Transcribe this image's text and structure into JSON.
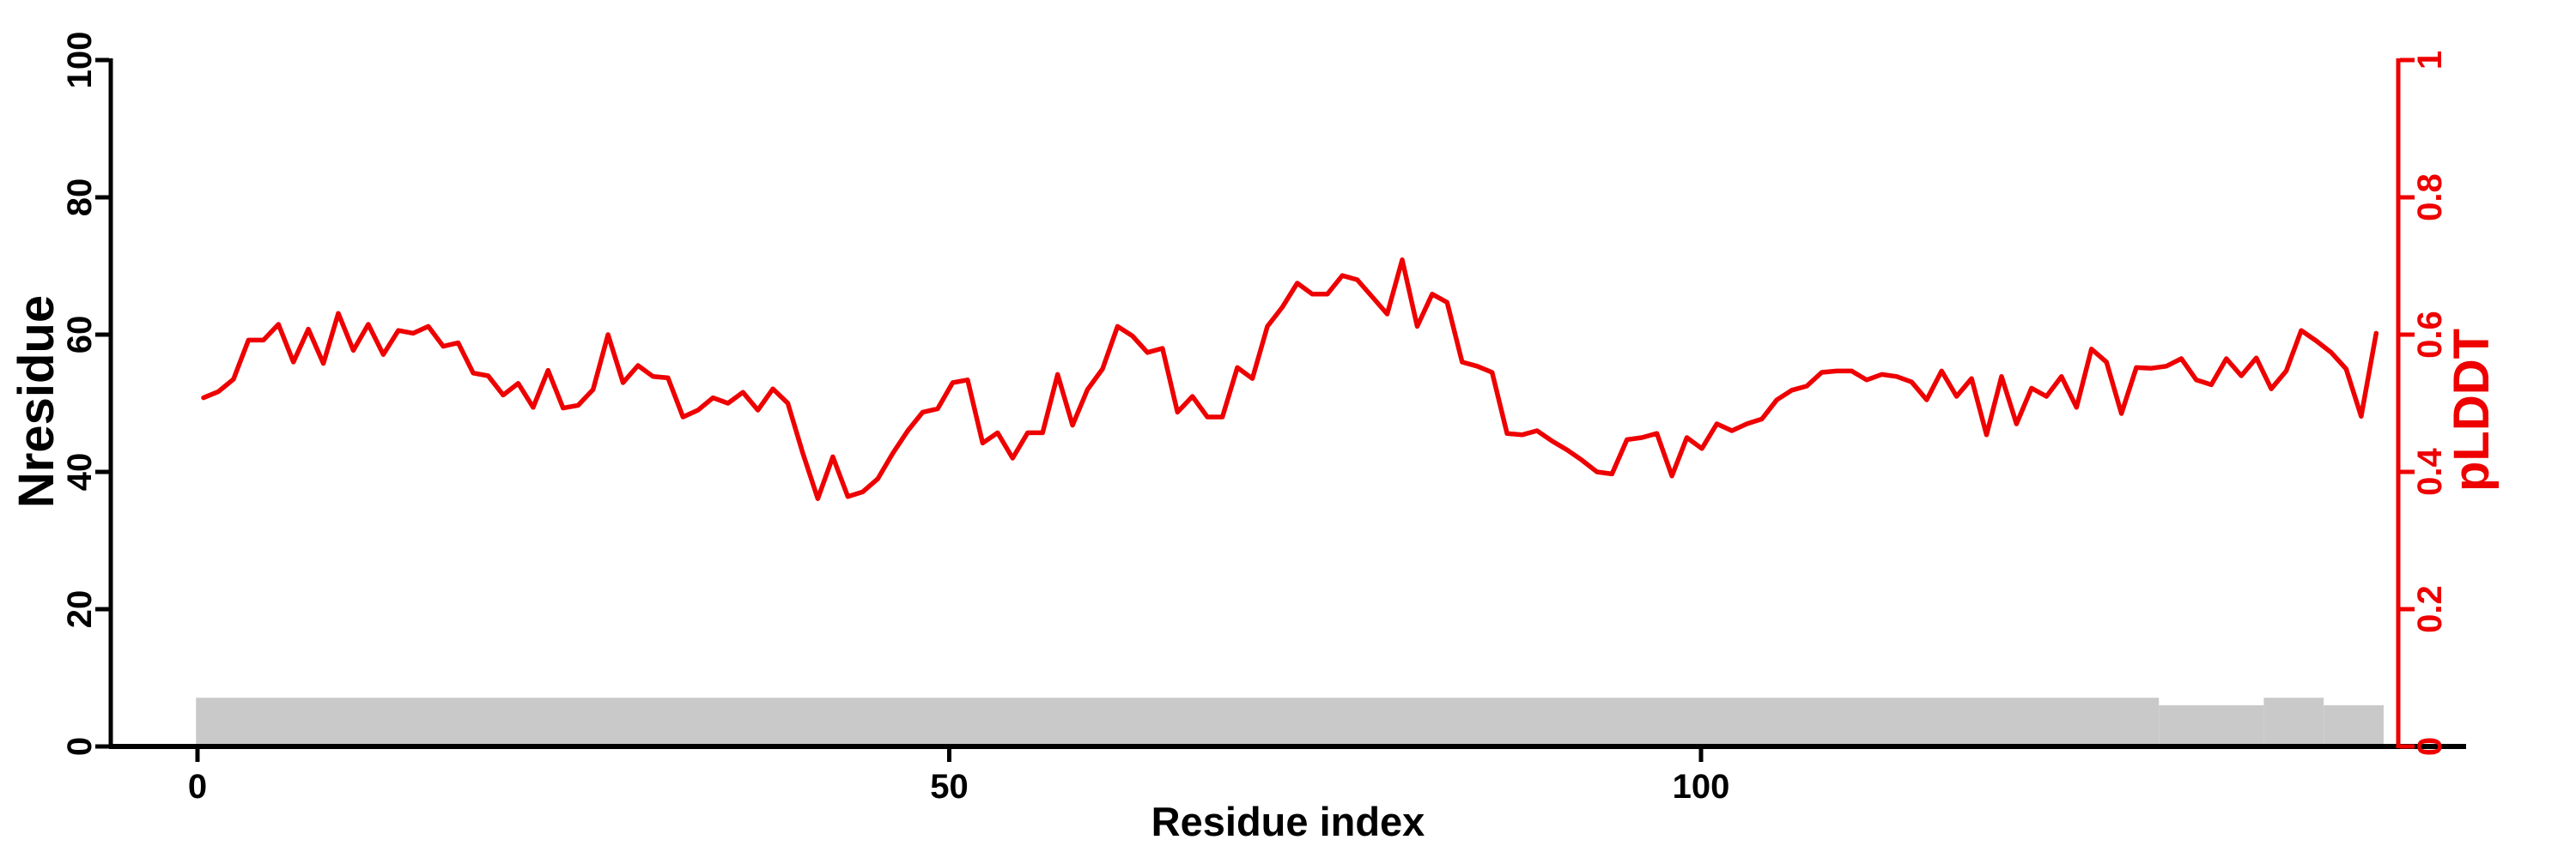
{
  "figure": {
    "background": "#ffffff"
  },
  "chart_data": {
    "type": "line",
    "title": "",
    "xlabel": "Residue index",
    "x_ticks": [
      0,
      50,
      100
    ],
    "x_range": [
      0,
      146
    ],
    "grid": false,
    "legend": "none",
    "left_axis": {
      "label": "Nresidue",
      "ticks": [
        0,
        20,
        40,
        60,
        80,
        100
      ],
      "range": [
        0,
        100
      ],
      "color": "#000000"
    },
    "right_axis": {
      "label": "pLDDT",
      "ticks": [
        0,
        0.2,
        0.4,
        0.6,
        0.8,
        1
      ],
      "tick_labels": [
        "0",
        "0.2",
        "0.4",
        "0.6",
        "0.8",
        "1"
      ],
      "range": [
        0,
        1
      ],
      "color": "#ee0000"
    },
    "series": [
      {
        "name": "pLDDT",
        "type": "line",
        "axis": "right",
        "color": "#ee0000",
        "x_start_residue": 0,
        "values": [
          0.508,
          0.517,
          0.535,
          0.592,
          0.592,
          0.615,
          0.56,
          0.608,
          0.558,
          0.631,
          0.577,
          0.615,
          0.571,
          0.606,
          0.602,
          0.612,
          0.583,
          0.588,
          0.544,
          0.54,
          0.512,
          0.529,
          0.494,
          0.548,
          0.493,
          0.497,
          0.52,
          0.6,
          0.53,
          0.555,
          0.539,
          0.537,
          0.48,
          0.49,
          0.508,
          0.5,
          0.516,
          0.49,
          0.521,
          0.5,
          0.427,
          0.361,
          0.422,
          0.364,
          0.371,
          0.39,
          0.427,
          0.46,
          0.487,
          0.492,
          0.53,
          0.534,
          0.442,
          0.457,
          0.42,
          0.457,
          0.457,
          0.542,
          0.468,
          0.52,
          0.55,
          0.612,
          0.598,
          0.574,
          0.58,
          0.487,
          0.51,
          0.48,
          0.48,
          0.552,
          0.536,
          0.612,
          0.64,
          0.675,
          0.659,
          0.659,
          0.686,
          0.68,
          0.655,
          0.63,
          0.709,
          0.612,
          0.659,
          0.647,
          0.56,
          0.554,
          0.545,
          0.456,
          0.454,
          0.46,
          0.445,
          0.432,
          0.417,
          0.4,
          0.397,
          0.447,
          0.45,
          0.456,
          0.394,
          0.45,
          0.434,
          0.47,
          0.46,
          0.47,
          0.477,
          0.505,
          0.519,
          0.525,
          0.545,
          0.547,
          0.547,
          0.534,
          0.542,
          0.539,
          0.531,
          0.505,
          0.547,
          0.51,
          0.536,
          0.454,
          0.539,
          0.47,
          0.522,
          0.51,
          0.539,
          0.494,
          0.579,
          0.56,
          0.485,
          0.552,
          0.551,
          0.554,
          0.565,
          0.534,
          0.527,
          0.565,
          0.54,
          0.566,
          0.521,
          0.547,
          0.606,
          0.591,
          0.574,
          0.55,
          0.481,
          0.602
        ]
      },
      {
        "name": "Nresidue",
        "type": "bar-segments",
        "axis": "left",
        "color": "#c9c9c9",
        "segments": [
          {
            "from_residue": 0,
            "to_residue": 130,
            "value": 7.1
          },
          {
            "from_residue": 131,
            "to_residue": 137,
            "value": 6.0
          },
          {
            "from_residue": 138,
            "to_residue": 141,
            "value": 7.1
          },
          {
            "from_residue": 142,
            "to_residue": 145,
            "value": 6.0
          }
        ]
      }
    ]
  }
}
